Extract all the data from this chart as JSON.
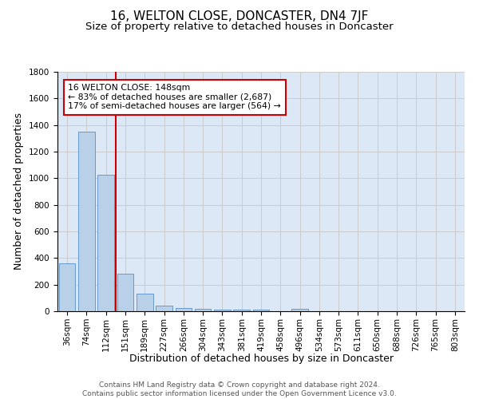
{
  "title": "16, WELTON CLOSE, DONCASTER, DN4 7JF",
  "subtitle": "Size of property relative to detached houses in Doncaster",
  "xlabel": "Distribution of detached houses by size in Doncaster",
  "ylabel": "Number of detached properties",
  "categories": [
    "36sqm",
    "74sqm",
    "112sqm",
    "151sqm",
    "189sqm",
    "227sqm",
    "266sqm",
    "304sqm",
    "343sqm",
    "381sqm",
    "419sqm",
    "458sqm",
    "496sqm",
    "534sqm",
    "573sqm",
    "611sqm",
    "650sqm",
    "688sqm",
    "726sqm",
    "765sqm",
    "803sqm"
  ],
  "values": [
    360,
    1350,
    1025,
    285,
    130,
    40,
    25,
    20,
    15,
    15,
    15,
    0,
    20,
    0,
    0,
    0,
    0,
    0,
    0,
    0,
    0
  ],
  "bar_color": "#b8d0e8",
  "bar_edge_color": "#6699cc",
  "red_line_x": 2.5,
  "annotation_text": "16 WELTON CLOSE: 148sqm\n← 83% of detached houses are smaller (2,687)\n17% of semi-detached houses are larger (564) →",
  "annotation_box_color": "#ffffff",
  "annotation_box_edge": "#cc0000",
  "ylim": [
    0,
    1800
  ],
  "yticks": [
    0,
    200,
    400,
    600,
    800,
    1000,
    1200,
    1400,
    1600,
    1800
  ],
  "grid_color": "#cccccc",
  "bg_color": "#dce8f5",
  "footer": "Contains HM Land Registry data © Crown copyright and database right 2024.\nContains public sector information licensed under the Open Government Licence v3.0.",
  "title_fontsize": 11,
  "subtitle_fontsize": 9.5,
  "axis_label_fontsize": 9,
  "tick_fontsize": 7.5,
  "footer_fontsize": 6.5
}
